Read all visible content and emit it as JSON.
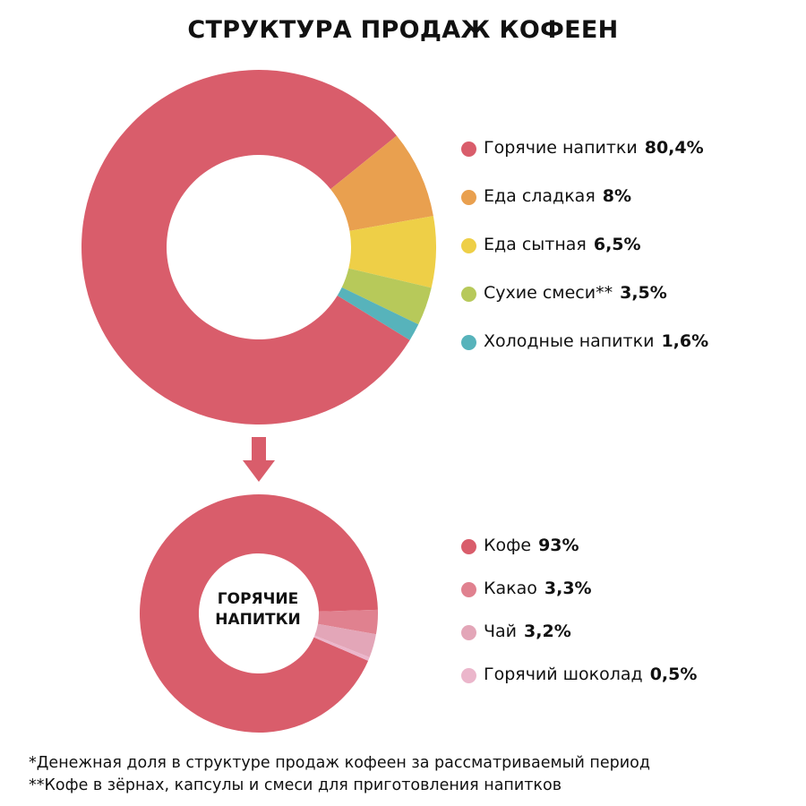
{
  "title": "СТРУКТУРА ПРОДАЖ КОФЕЕН",
  "chart_data": [
    {
      "type": "pie",
      "title": "",
      "categories": [
        "Горячие напитки",
        "Еда сладкая",
        "Еда сытная",
        "Сухие смеси**",
        "Холодные напитки"
      ],
      "values": [
        80.4,
        8,
        6.5,
        3.5,
        1.6
      ],
      "value_labels": [
        "80,4%",
        "8%",
        "6,5%",
        "3,5%",
        "1,6%"
      ],
      "colors": [
        "#d95d6b",
        "#e9a04f",
        "#eecf47",
        "#b7c95a",
        "#57b3bb"
      ],
      "legend_position": "right",
      "donut": true
    },
    {
      "type": "pie",
      "title": "",
      "center_label": [
        "ГОРЯЧИЕ",
        "НАПИТКИ"
      ],
      "categories": [
        "Кофе",
        "Какао",
        "Чай",
        "Горячий шоколад"
      ],
      "values": [
        93,
        3.3,
        3.2,
        0.5
      ],
      "value_labels": [
        "93%",
        "3,3%",
        "3,2%",
        "0,5%"
      ],
      "colors": [
        "#d95d6b",
        "#e0818f",
        "#e3a6b8",
        "#ebb6cb"
      ],
      "legend_position": "right",
      "donut": true
    }
  ],
  "arrow_color": "#d95d6b",
  "footnotes": [
    "*Денежная доля в структуре продаж кофеен за рассматриваемый период",
    "**Кофе в зёрнах, капсулы и смеси для приготовления напитков"
  ]
}
